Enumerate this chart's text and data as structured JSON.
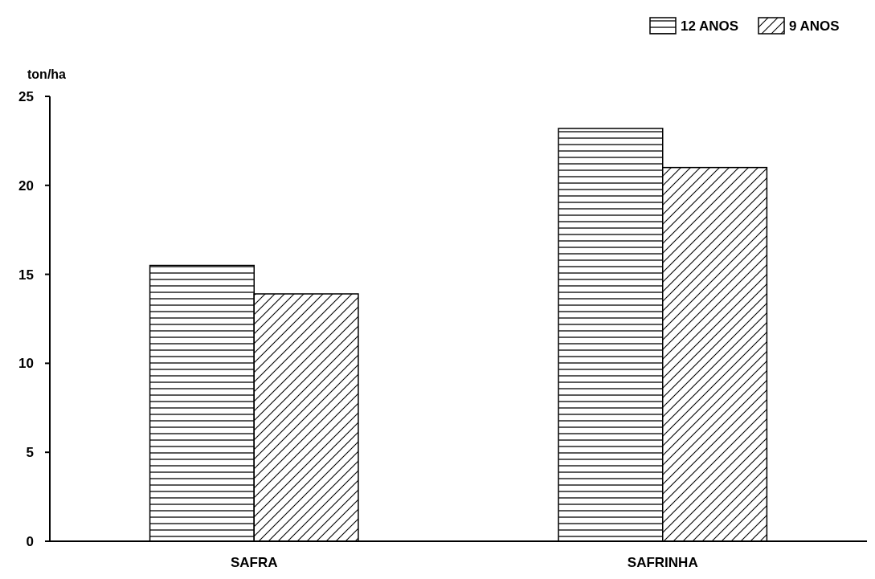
{
  "chart_data": {
    "type": "bar",
    "ylabel": "ton/ha",
    "categories": [
      "SAFRA",
      "SAFRINHA"
    ],
    "series": [
      {
        "name": "12 ANOS",
        "color": "#000000",
        "values": [
          15.5,
          23.2
        ]
      },
      {
        "name": "9 ANOS",
        "color": "#000000",
        "values": [
          13.9,
          21.0
        ]
      }
    ],
    "ylim": [
      0,
      25
    ],
    "yticks": [
      0,
      5,
      10,
      15,
      20,
      25
    ],
    "legend": "top right"
  }
}
